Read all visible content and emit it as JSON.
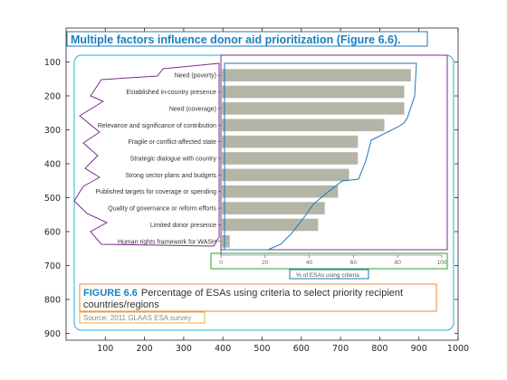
{
  "outer_axes": {
    "x_ticks": [
      "100",
      "200",
      "300",
      "400",
      "500",
      "600",
      "700",
      "800",
      "900",
      "1000"
    ],
    "y_ticks": [
      "100",
      "200",
      "300",
      "400",
      "500",
      "600",
      "700",
      "800",
      "900"
    ],
    "xlim": [
      0,
      1000
    ],
    "ylim": [
      0,
      920
    ],
    "y_reversed": true
  },
  "chart_data": {
    "type": "bar",
    "orientation": "horizontal",
    "title": "Multiple factors influence donor aid prioritization (Figure 6.6).",
    "categories": [
      "Need (poverty)",
      "Established in-country presence",
      "Need (coverage)",
      "Relevance and significance of contribution",
      "Fragile or conflict-affected state",
      "Strategic dialogue with country",
      "Strong sector plans and budgets",
      "Published targets for coverage or spending",
      "Quality of governance or reform efforts",
      "Limited donor presence",
      "Human rights framework for WASH"
    ],
    "values": [
      86,
      83,
      83,
      74,
      62,
      62,
      58,
      53,
      47,
      44,
      4
    ],
    "xlim": [
      0,
      100
    ],
    "x_ticks": [
      "0",
      "20",
      "40",
      "60",
      "80",
      "100"
    ],
    "xlabel": "% of ESAs using criteria",
    "ylabel": "",
    "bar_color": "#b3b5a6"
  },
  "caption": {
    "figure_label": "FIGURE 6.6",
    "line1": "Percentage of ESAs using criteria to select priority recipient",
    "line2": "countries/regions",
    "source": "Source: 2011 GLAAS ESA survey"
  },
  "colors": {
    "title": "#1a7fbf",
    "annotation_blue": "#1f77b4",
    "annotation_purple": "#7b2d8e",
    "annotation_green": "#2ca02c",
    "annotation_orange": "#e8853d",
    "annotation_teal": "#17a2b8",
    "annotation_cyan": "#21b5c7"
  }
}
